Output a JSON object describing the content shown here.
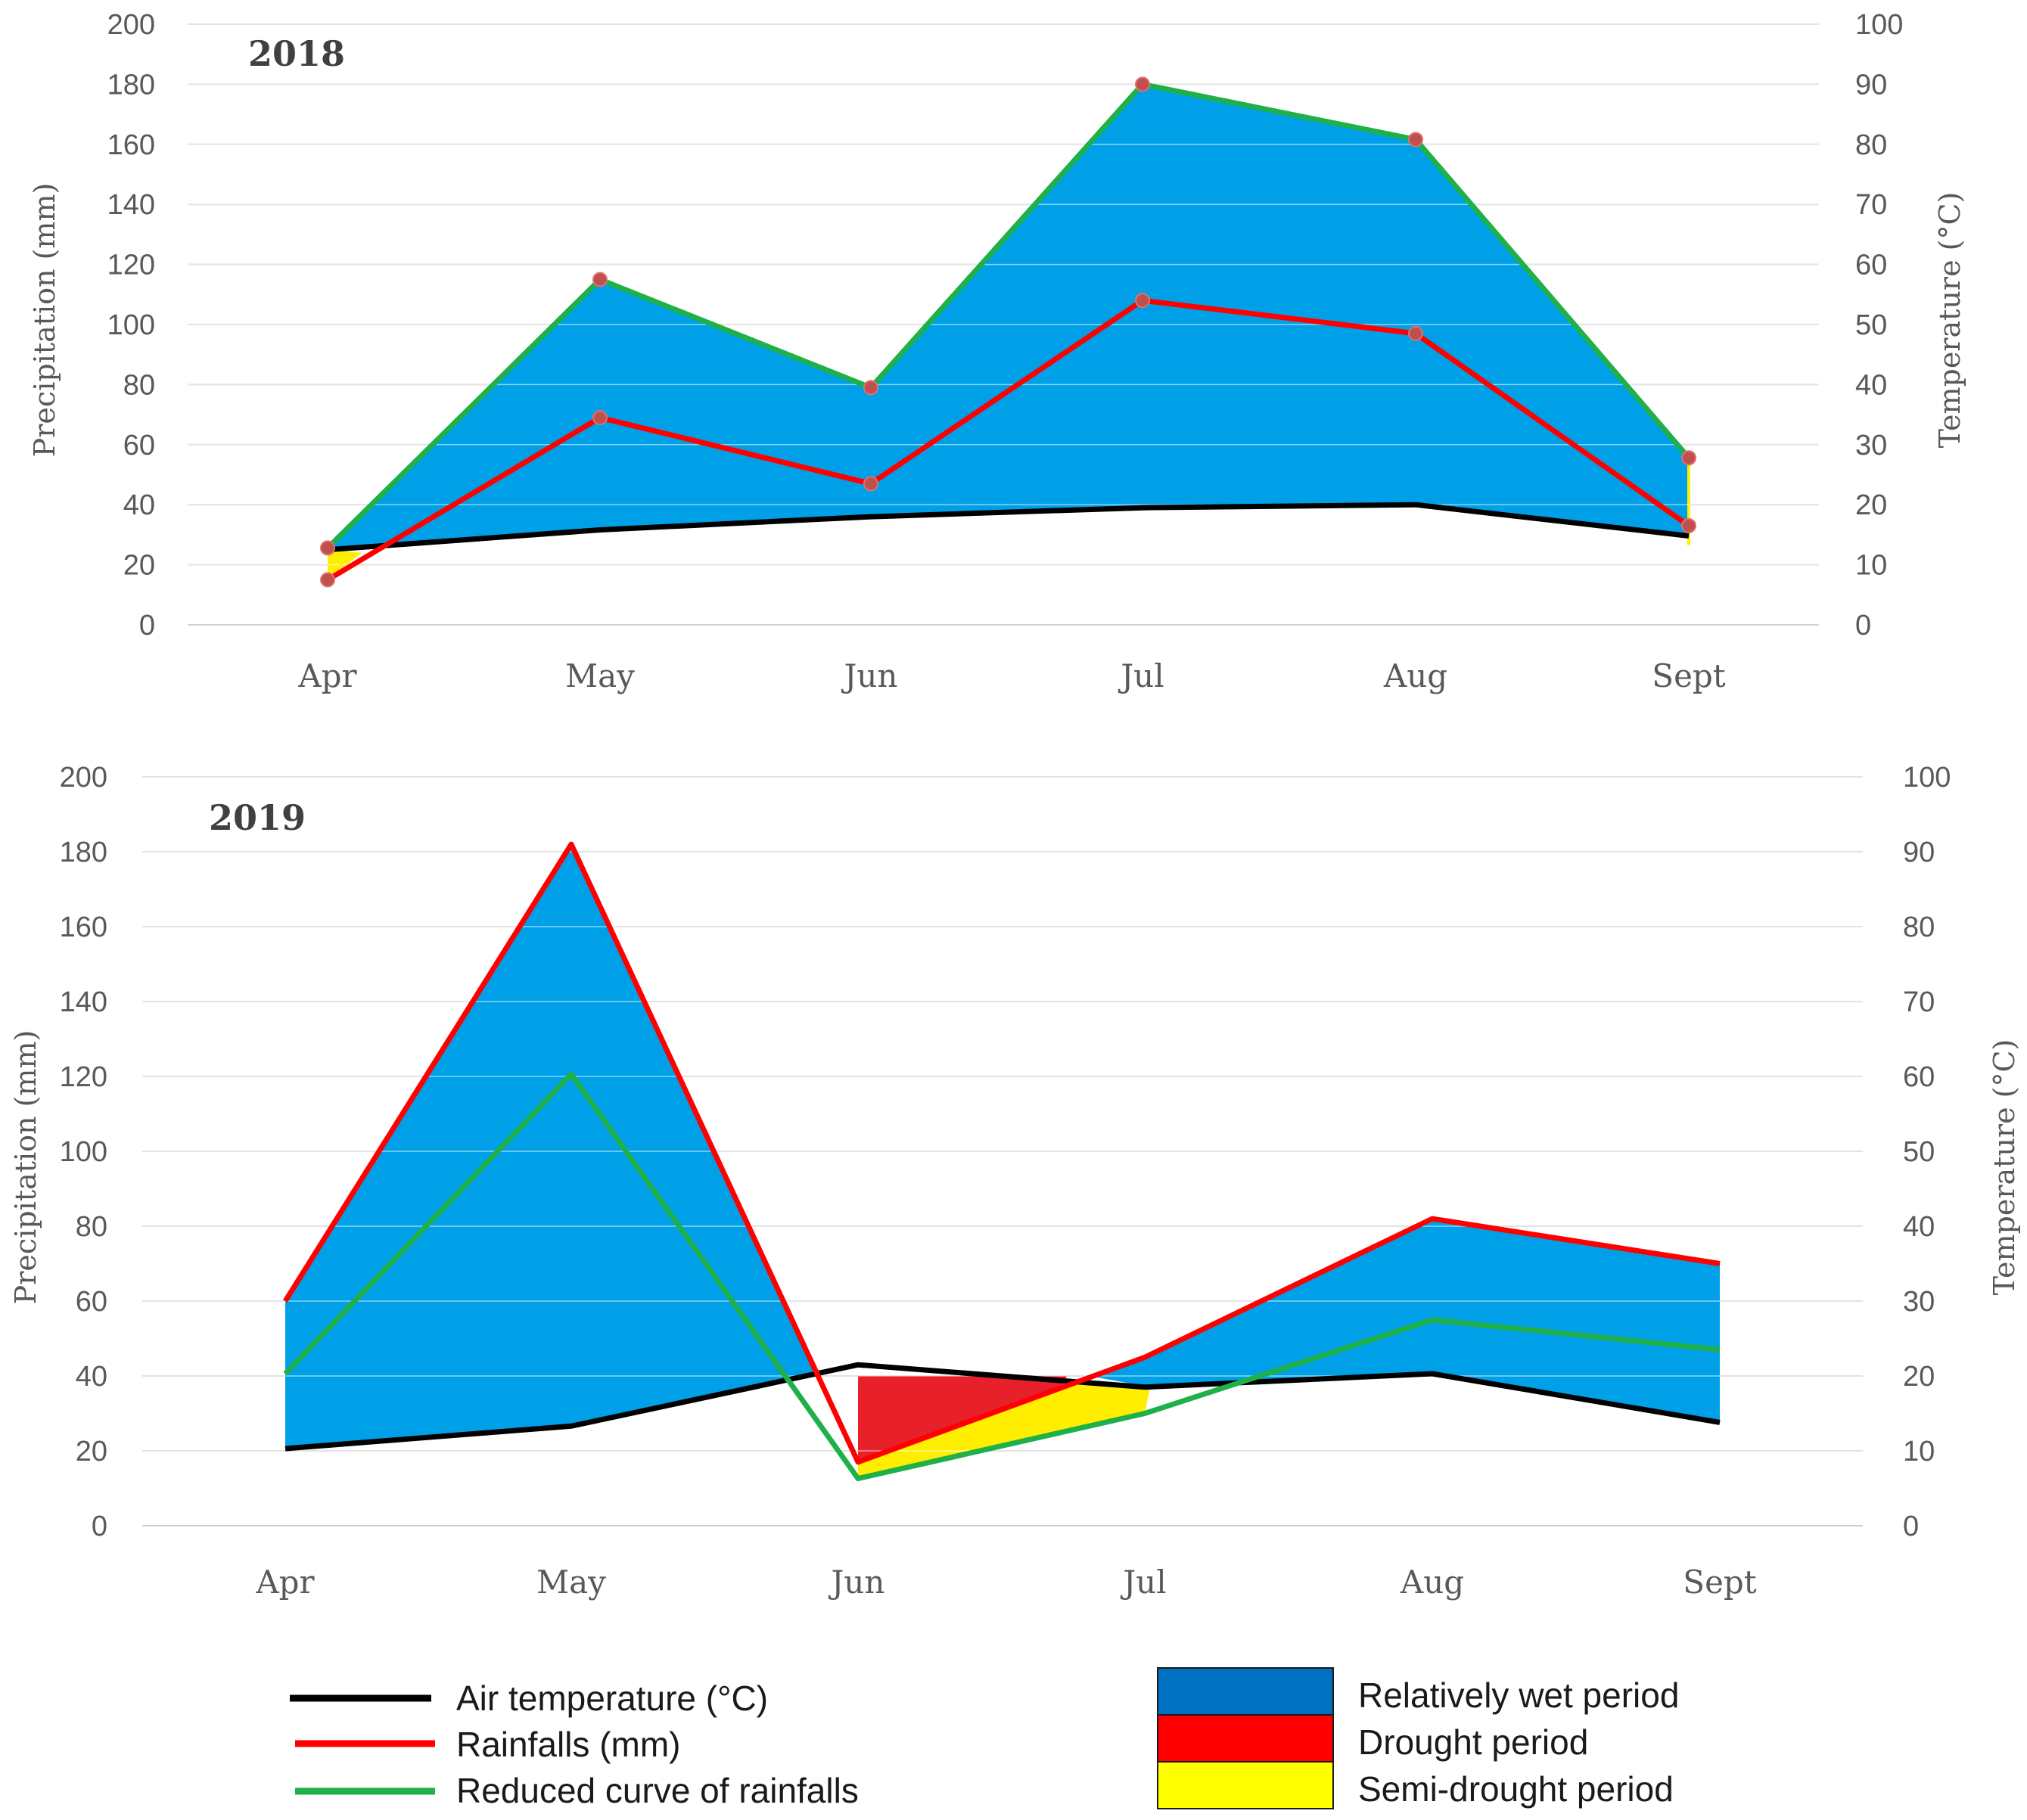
{
  "chart_data": [
    {
      "type": "line",
      "title": "2018",
      "categories": [
        "Apr",
        "May",
        "Jun",
        "Jul",
        "Aug",
        "Sept"
      ],
      "ylabel": "Precipitation (mm)",
      "y2label": "Temperature (°C)",
      "ylim": [
        0,
        200
      ],
      "y2lim": [
        0,
        100
      ],
      "yticks": [
        "0",
        "20",
        "40",
        "60",
        "80",
        "100",
        "120",
        "140",
        "160",
        "180",
        "200"
      ],
      "y2ticks": [
        "0",
        "10",
        "20",
        "30",
        "40",
        "50",
        "60",
        "70",
        "80",
        "90",
        "100"
      ],
      "grid": true,
      "series": [
        {
          "name": "Air temperature (°C)",
          "axis": "right",
          "color": "#000000",
          "values": [
            12.5,
            15.8,
            18.0,
            19.5,
            20.0,
            14.8
          ]
        },
        {
          "name": "Rainfalls (mm)",
          "axis": "left",
          "color": "#ff0000",
          "values": [
            15,
            69,
            47,
            108,
            97,
            33
          ]
        },
        {
          "name": "Reduced curve of rainfalls",
          "axis": "right",
          "color": "#1fb04a",
          "values": [
            12.8,
            57.5,
            39.5,
            90.0,
            80.8,
            27.8
          ]
        }
      ]
    },
    {
      "type": "line",
      "title": "2019",
      "categories": [
        "Apr",
        "May",
        "Jun",
        "Jul",
        "Aug",
        "Sept"
      ],
      "ylabel": "Precipitation (mm)",
      "y2label": "Temperature (°C)",
      "ylim": [
        0,
        200
      ],
      "y2lim": [
        0,
        100
      ],
      "yticks": [
        "0",
        "20",
        "40",
        "60",
        "80",
        "100",
        "120",
        "140",
        "160",
        "180",
        "200"
      ],
      "y2ticks": [
        "0",
        "10",
        "20",
        "30",
        "40",
        "50",
        "60",
        "70",
        "80",
        "90",
        "100"
      ],
      "grid": true,
      "series": [
        {
          "name": "Air temperature (°C)",
          "axis": "right",
          "color": "#000000",
          "values": [
            10.3,
            13.3,
            21.5,
            18.5,
            20.3,
            13.8
          ]
        },
        {
          "name": "Rainfalls (mm)",
          "axis": "left",
          "color": "#ff0000",
          "values": [
            60,
            182,
            17,
            45,
            82,
            70
          ]
        },
        {
          "name": "Reduced curve of rainfalls",
          "axis": "right",
          "color": "#1fb04a",
          "values": [
            20.3,
            60.3,
            6.3,
            15.0,
            27.5,
            23.5
          ]
        }
      ]
    }
  ],
  "legend": {
    "lines": [
      {
        "label": "Air temperature (°C)",
        "color": "#000000"
      },
      {
        "label": "Rainfalls (mm)",
        "color": "#ff0000"
      },
      {
        "label": "Reduced curve of rainfalls",
        "color": "#1fb04a"
      }
    ],
    "areas": [
      {
        "label": "Relatively wet period",
        "color": "#0070c0"
      },
      {
        "label": "Drought period",
        "color": "#ff0000"
      },
      {
        "label": "Semi-drought period",
        "color": "#ffff00"
      }
    ]
  },
  "colors": {
    "wet_fill": "#00a0e8",
    "drought_fill": "#e8202a",
    "semi_fill": "#ffee00"
  }
}
